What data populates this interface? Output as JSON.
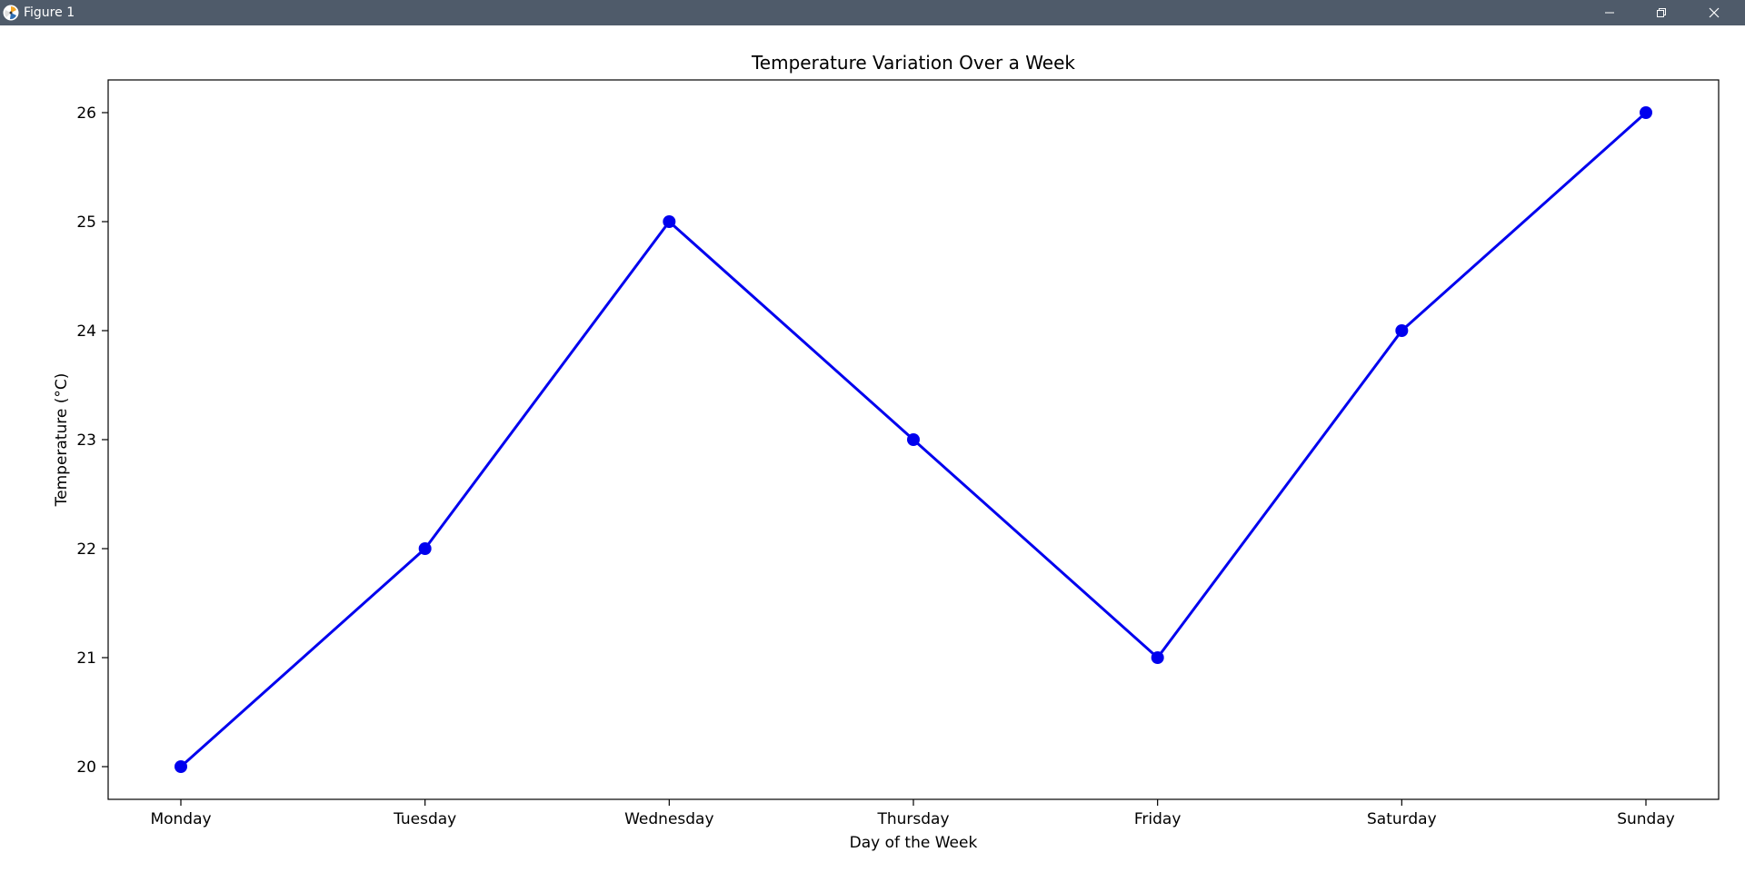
{
  "window": {
    "title": "Figure 1",
    "icon": "matplotlib-icon",
    "controls": {
      "minimize_icon": "minimize-icon",
      "maximize_icon": "restore-icon",
      "close_icon": "close-icon"
    }
  },
  "colors": {
    "titlebar": "#4f5b6a",
    "series": "#0000ee",
    "axes": "#000000"
  },
  "chart_data": {
    "type": "line",
    "title": "Temperature Variation Over a Week",
    "xlabel": "Day of the Week",
    "ylabel": "Temperature (°C)",
    "categories": [
      "Monday",
      "Tuesday",
      "Wednesday",
      "Thursday",
      "Friday",
      "Saturday",
      "Sunday"
    ],
    "series": [
      {
        "values": [
          20,
          22,
          25,
          23,
          21,
          24,
          26
        ],
        "color": "#0000ee",
        "marker": "circle"
      }
    ],
    "ylim": [
      19.7,
      26.3
    ],
    "yticks": [
      20,
      21,
      22,
      23,
      24,
      25,
      26
    ],
    "grid": false,
    "legend": "none"
  }
}
